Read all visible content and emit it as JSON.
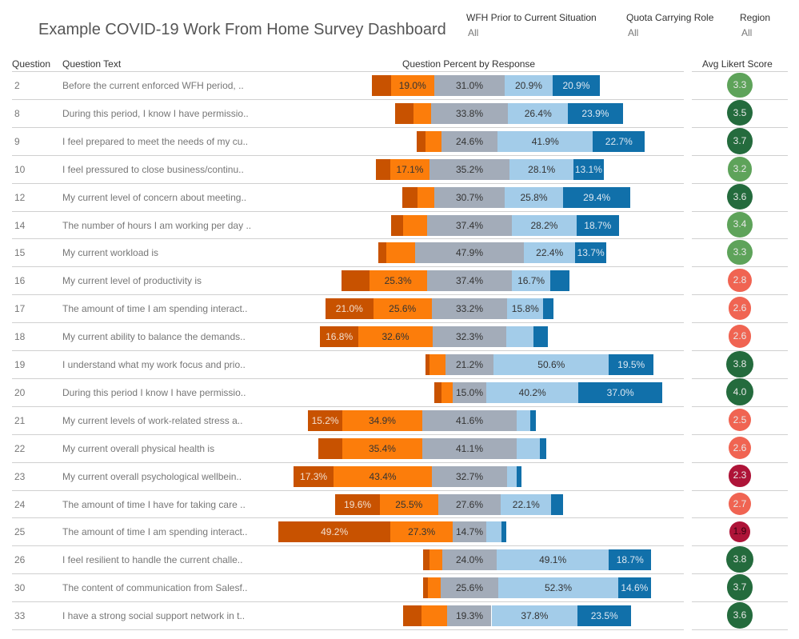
{
  "header": {
    "title": "Example COVID-19 Work From Home Survey Dashboard"
  },
  "filters": [
    {
      "label": "WFH Prior to Current Situation",
      "value": "All"
    },
    {
      "label": "Quota Carrying Role",
      "value": "All"
    },
    {
      "label": "Region",
      "value": "All"
    }
  ],
  "columns": {
    "question": "Question",
    "text": "Question Text",
    "percent": "Question Percent by Response",
    "likert": "Avg Likert Score"
  },
  "colors": {
    "segments": [
      "#c85200",
      "#fc7d0b",
      "#a3acb9",
      "#a3cce9",
      "#1170aa"
    ],
    "likert_dark_green": "#246b3d",
    "likert_light_green": "#5ea35a",
    "likert_salmon": "#f06452",
    "likert_crimson": "#ae1438"
  },
  "chart_data": {
    "type": "bar",
    "stacking": "diverging, centered on the middle response",
    "categories": [
      "2",
      "8",
      "9",
      "10",
      "12",
      "14",
      "15",
      "16",
      "17",
      "18",
      "19",
      "20",
      "21",
      "22",
      "23",
      "24",
      "25",
      "26",
      "30",
      "33"
    ],
    "rows": [
      {
        "q": "2",
        "text": "Before the current enforced WFH period, ..",
        "values": [
          8.2,
          19.0,
          31.0,
          20.9,
          20.9
        ],
        "score": "3.3",
        "color": "#5ea35a"
      },
      {
        "q": "8",
        "text": "During this period, I know I have permissio..",
        "values": [
          8.4,
          7.5,
          33.8,
          26.4,
          23.9
        ],
        "score": "3.5",
        "color": "#246b3d"
      },
      {
        "q": "9",
        "text": "I feel prepared to meet the needs of my cu..",
        "values": [
          3.9,
          6.9,
          24.6,
          41.9,
          22.7
        ],
        "score": "3.7",
        "color": "#246b3d"
      },
      {
        "q": "10",
        "text": "I feel pressured to close business/continu..",
        "values": [
          6.5,
          17.1,
          35.2,
          28.1,
          13.1
        ],
        "score": "3.2",
        "color": "#5ea35a"
      },
      {
        "q": "12",
        "text": "My current level of concern about meeting..",
        "values": [
          6.7,
          7.4,
          30.7,
          25.8,
          29.4
        ],
        "score": "3.6",
        "color": "#246b3d"
      },
      {
        "q": "14",
        "text": "The number of hours I am working per day ..",
        "values": [
          5.3,
          10.4,
          37.4,
          28.2,
          18.7
        ],
        "score": "3.4",
        "color": "#5ea35a"
      },
      {
        "q": "15",
        "text": "My current workload is",
        "values": [
          3.5,
          12.5,
          47.9,
          22.4,
          13.7
        ],
        "score": "3.3",
        "color": "#5ea35a"
      },
      {
        "q": "16",
        "text": "My current level of productivity is",
        "values": [
          12.1,
          25.3,
          37.4,
          16.7,
          8.5
        ],
        "score": "2.8",
        "color": "#f06452"
      },
      {
        "q": "17",
        "text": "The amount of time I am spending interact..",
        "values": [
          21.0,
          25.6,
          33.2,
          15.8,
          4.4
        ],
        "score": "2.6",
        "color": "#f06452"
      },
      {
        "q": "18",
        "text": "My current ability to balance the demands..",
        "values": [
          16.8,
          32.6,
          32.3,
          12.0,
          6.3
        ],
        "score": "2.6",
        "color": "#f06452"
      },
      {
        "q": "19",
        "text": "I understand what my work focus and prio..",
        "values": [
          1.7,
          7.0,
          21.2,
          50.6,
          19.5
        ],
        "score": "3.8",
        "color": "#246b3d"
      },
      {
        "q": "20",
        "text": "During this period I know I have permissio..",
        "values": [
          2.9,
          4.9,
          15.0,
          40.2,
          37.0
        ],
        "score": "4.0",
        "color": "#246b3d"
      },
      {
        "q": "21",
        "text": "My current levels of work-related stress a..",
        "values": [
          15.2,
          34.9,
          41.6,
          5.7,
          2.6
        ],
        "score": "2.5",
        "color": "#f06452"
      },
      {
        "q": "22",
        "text": "My current overall physical health is",
        "values": [
          10.5,
          35.4,
          41.1,
          10.5,
          2.5
        ],
        "score": "2.6",
        "color": "#f06452"
      },
      {
        "q": "23",
        "text": "My current overall psychological wellbein..",
        "values": [
          17.3,
          43.4,
          32.7,
          4.2,
          2.4
        ],
        "score": "2.3",
        "color": "#ae1438"
      },
      {
        "q": "24",
        "text": "The amount of time I have for taking care ..",
        "values": [
          19.6,
          25.5,
          27.6,
          22.1,
          5.2
        ],
        "score": "2.7",
        "color": "#f06452"
      },
      {
        "q": "25",
        "text": "The amount of time I am spending interact..",
        "values": [
          49.2,
          27.3,
          14.7,
          6.7,
          2.1
        ],
        "score": "1.9",
        "color": "#ae1438"
      },
      {
        "q": "26",
        "text": "I feel resilient to handle the current challe..",
        "values": [
          2.8,
          5.4,
          24.0,
          49.1,
          18.7
        ],
        "score": "3.8",
        "color": "#246b3d"
      },
      {
        "q": "30",
        "text": "The content of communication from Salesf..",
        "values": [
          2.0,
          5.5,
          25.6,
          52.3,
          14.6
        ],
        "score": "3.7",
        "color": "#246b3d"
      },
      {
        "q": "33",
        "text": "I have a strong social support network in t..",
        "values": [
          8.0,
          11.4,
          19.3,
          37.8,
          23.5
        ],
        "score": "3.6",
        "color": "#246b3d"
      }
    ]
  }
}
